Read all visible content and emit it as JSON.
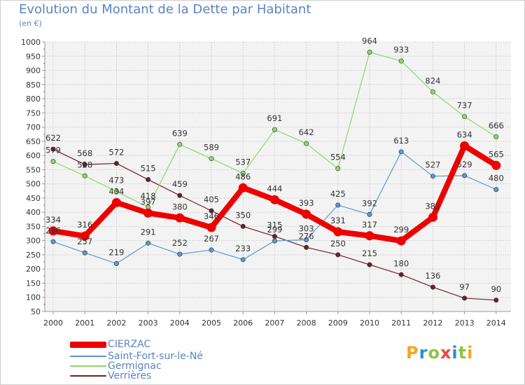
{
  "title": "Evolution du Montant de la Dette par Habitant",
  "unit": "(en €)",
  "brand": {
    "text": "Proxiti",
    "colors": [
      "#f5a623",
      "#2a8fd8",
      "#8dc63f",
      "#e8473f",
      "#2a8fd8",
      "#8dc63f",
      "#f5a623"
    ]
  },
  "chart_data": {
    "type": "line",
    "x": [
      "2000",
      "2001",
      "2002",
      "2003",
      "2004",
      "2005",
      "2006",
      "2007",
      "2008",
      "2009",
      "2010",
      "2011",
      "2012",
      "2013",
      "2014"
    ],
    "ylim": [
      50,
      1000
    ],
    "yticks": [
      50,
      100,
      150,
      200,
      250,
      300,
      350,
      400,
      450,
      500,
      550,
      600,
      650,
      700,
      750,
      800,
      850,
      900,
      950,
      1000
    ],
    "grid": true,
    "legend_position": "bottom-left",
    "series": [
      {
        "name": "Verrières",
        "color": "#6b1f2a",
        "values": [
          622,
          568,
          572,
          515,
          459,
          405,
          350,
          315,
          276,
          250,
          215,
          180,
          136,
          97,
          90
        ]
      },
      {
        "name": "Germignac",
        "color": "#8fd66a",
        "values": [
          579,
          528,
          473,
          418,
          639,
          589,
          537,
          691,
          642,
          554,
          964,
          933,
          824,
          737,
          666
        ]
      },
      {
        "name": "Saint-Fort-sur-le-Né",
        "color": "#5b97cf",
        "values": [
          296,
          257,
          219,
          291,
          252,
          267,
          233,
          299,
          303,
          425,
          392,
          613,
          527,
          529,
          480
        ]
      },
      {
        "name": "CIERZAC",
        "color": "#ee0000",
        "values": [
          334,
          316,
          434,
          397,
          380,
          346,
          486,
          444,
          393,
          331,
          317,
          299,
          382,
          634,
          565
        ]
      }
    ],
    "legend_order": [
      "CIERZAC",
      "Saint-Fort-sur-le-Né",
      "Germignac",
      "Verrières"
    ]
  }
}
